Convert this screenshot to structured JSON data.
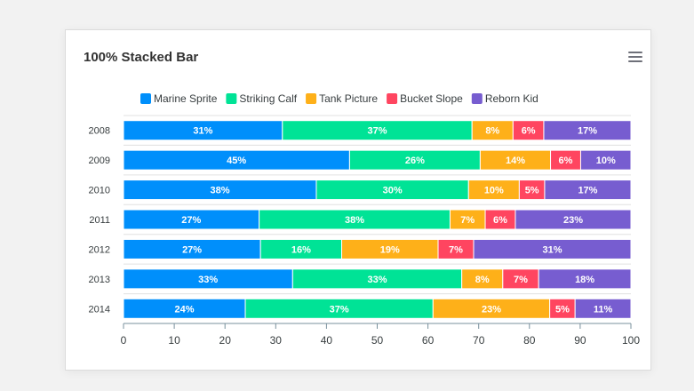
{
  "chart_data": {
    "type": "bar",
    "orientation": "horizontal",
    "stacked": "100%",
    "title": "100% Stacked Bar",
    "categories": [
      "2008",
      "2009",
      "2010",
      "2011",
      "2012",
      "2013",
      "2014"
    ],
    "series": [
      {
        "name": "Marine Sprite",
        "color": "#008ffb",
        "values": [
          31,
          45,
          38,
          27,
          27,
          33,
          24
        ]
      },
      {
        "name": "Striking Calf",
        "color": "#00e396",
        "values": [
          37,
          26,
          30,
          38,
          16,
          33,
          37
        ]
      },
      {
        "name": "Tank Picture",
        "color": "#feb019",
        "values": [
          8,
          14,
          10,
          7,
          19,
          8,
          23
        ]
      },
      {
        "name": "Bucket Slope",
        "color": "#ff4560",
        "values": [
          6,
          6,
          5,
          6,
          7,
          7,
          5
        ]
      },
      {
        "name": "Reborn Kid",
        "color": "#775dd0",
        "values": [
          17,
          10,
          17,
          23,
          31,
          18,
          11
        ]
      }
    ],
    "xlim": [
      0,
      100
    ],
    "xticks": [
      0,
      10,
      20,
      30,
      40,
      50,
      60,
      70,
      80,
      90,
      100
    ],
    "legend": "top",
    "grid": "horizontal"
  }
}
